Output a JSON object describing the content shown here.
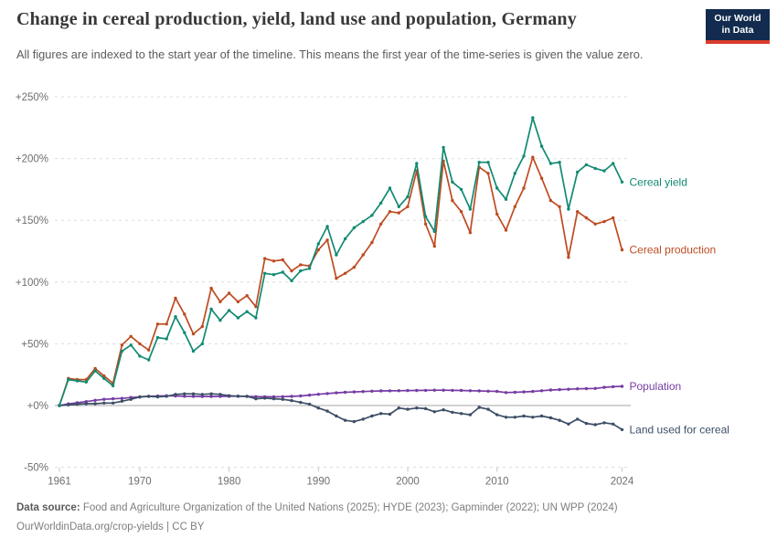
{
  "header": {
    "title": "Change in cereal production, yield, land use and population, Germany",
    "subtitle": "All figures are indexed to the start year of the timeline. This means the first year of the time-series is given the value zero.",
    "logo_line1": "Our World",
    "logo_line2": "in Data",
    "logo_bg_color": "#122B4E",
    "logo_accent_color": "#D93B2B"
  },
  "chart_data": {
    "type": "line",
    "title": "Change in cereal production, yield, land use and population, Germany",
    "unit": "%",
    "grid": "horizontal-dashed",
    "zero_line": true,
    "legend_position": "end-of-line labels, right side",
    "ylim": [
      -50,
      250
    ],
    "ytick_values": [
      250,
      200,
      150,
      100,
      50,
      0,
      -50
    ],
    "ytick_labels": [
      "+250%",
      "+200%",
      "+150%",
      "+100%",
      "+50%",
      "+0%",
      "-50%"
    ],
    "xtick_values": [
      1961,
      1970,
      1980,
      1990,
      2000,
      2010,
      2024
    ],
    "x": [
      1961,
      1962,
      1963,
      1964,
      1965,
      1966,
      1967,
      1968,
      1969,
      1970,
      1971,
      1972,
      1973,
      1974,
      1975,
      1976,
      1977,
      1978,
      1979,
      1980,
      1981,
      1982,
      1983,
      1984,
      1985,
      1986,
      1987,
      1988,
      1989,
      1990,
      1991,
      1992,
      1993,
      1994,
      1995,
      1996,
      1997,
      1998,
      1999,
      2000,
      2001,
      2002,
      2003,
      2004,
      2005,
      2006,
      2007,
      2008,
      2009,
      2010,
      2011,
      2012,
      2013,
      2014,
      2015,
      2016,
      2017,
      2018,
      2019,
      2020,
      2021,
      2022,
      2023,
      2024
    ],
    "series": [
      {
        "name": "Population",
        "color": "#763CA4",
        "values": [
          0,
          1.3,
          2.2,
          3.2,
          4.2,
          5,
          5.5,
          5.8,
          6.5,
          6.9,
          7.4,
          7.7,
          7.9,
          7.8,
          7.5,
          7.4,
          7.3,
          7.3,
          7.4,
          7.5,
          7.6,
          7.4,
          7.2,
          7.1,
          7,
          7.2,
          7.4,
          7.8,
          8.4,
          9.1,
          9.7,
          10.3,
          10.7,
          11,
          11.3,
          11.6,
          11.8,
          11.9,
          12,
          12.1,
          12.2,
          12.3,
          12.4,
          12.4,
          12.3,
          12.2,
          12,
          11.8,
          11.6,
          11.5,
          10.5,
          10.7,
          11,
          11.4,
          12,
          12.6,
          12.9,
          13.2,
          13.5,
          13.7,
          13.8,
          14.7,
          15.2,
          15.5
        ]
      },
      {
        "name": "Land used for cereal",
        "color": "#3C4E66",
        "values": [
          0,
          0.5,
          1,
          1.5,
          1.5,
          2,
          2,
          3.5,
          5,
          7,
          7.5,
          7,
          7.5,
          9,
          9.5,
          9.5,
          9,
          9.5,
          9,
          8,
          7.5,
          7.5,
          5.5,
          6,
          5.5,
          5,
          4,
          2.5,
          1,
          -2,
          -4.5,
          -8.5,
          -12,
          -13,
          -11,
          -8.5,
          -6.5,
          -7,
          -2,
          -3,
          -2,
          -2.5,
          -5,
          -3.5,
          -5.5,
          -6.5,
          -7.5,
          -1.5,
          -3,
          -7.5,
          -9.5,
          -9.5,
          -8.5,
          -9.5,
          -8.5,
          -10,
          -12,
          -15,
          -11,
          -14.5,
          -15.5,
          -14,
          -15,
          -19.5
        ]
      },
      {
        "name": "Cereal production",
        "color": "#BE4B21",
        "values": [
          0,
          22,
          21,
          21,
          30,
          24,
          18,
          49,
          56,
          50,
          45,
          66,
          66,
          87,
          74,
          58,
          64,
          95,
          84,
          91,
          84,
          89,
          80,
          119,
          117,
          118,
          109,
          114,
          113,
          126,
          134,
          103,
          107,
          112,
          122,
          132,
          147,
          157,
          156,
          161,
          190,
          147,
          129,
          198,
          166,
          157,
          140,
          193,
          188,
          155,
          142,
          161,
          176,
          201,
          184,
          166,
          161,
          120,
          157,
          152,
          147,
          149,
          152,
          126
        ]
      },
      {
        "name": "Cereal yield",
        "color": "#128A73",
        "values": [
          0,
          21,
          20,
          19,
          28,
          22,
          16,
          44,
          49,
          40,
          37,
          55,
          54,
          72,
          59,
          44,
          50,
          78,
          69,
          77,
          71,
          76,
          71,
          107,
          106,
          108,
          101,
          109,
          111,
          131,
          145,
          122,
          135,
          144,
          149,
          154,
          164,
          176,
          161,
          169,
          196,
          153,
          141,
          209,
          181,
          175,
          159,
          197,
          197,
          176,
          167,
          188,
          202,
          233,
          210,
          196,
          197,
          159,
          189,
          195,
          192,
          190,
          196,
          181
        ]
      }
    ],
    "axis_text_color": "#6e6e6e",
    "gridline_color": "#dcdcdc",
    "zero_line_color": "#a6a6a6"
  },
  "footer": {
    "source_label": "Data source:",
    "sources": "Food and Agriculture Organization of the United Nations (2025); HYDE (2023); Gapminder (2022); UN WPP (2024)",
    "url": "OurWorldinData.org/crop-yields",
    "separator": "|",
    "license": "CC BY"
  }
}
